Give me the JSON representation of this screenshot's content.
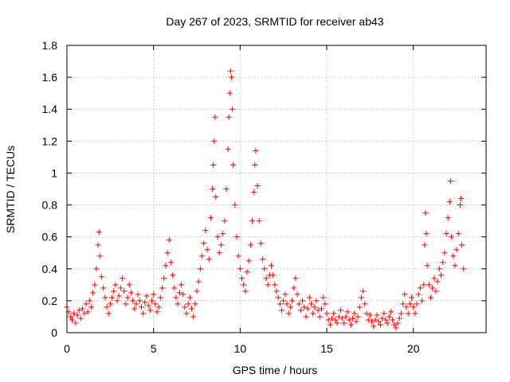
{
  "chart_data": {
    "type": "scatter",
    "title": "Day 267 of 2023, SRMTID for receiver ab43",
    "xlabel": "GPS time / hours",
    "ylabel": "SRMTID / TECUs",
    "xlim": [
      0,
      24.2
    ],
    "ylim": [
      0,
      1.8
    ],
    "xticks": [
      0,
      5,
      10,
      15,
      20
    ],
    "xtick_labels": [
      "0",
      "5",
      "10",
      "15",
      "20"
    ],
    "yticks": [
      0,
      0.2,
      0.4,
      0.6,
      0.8,
      1,
      1.2,
      1.4,
      1.6,
      1.8
    ],
    "ytick_labels": [
      "0",
      "0.2",
      "0.4",
      "0.6",
      "0.8",
      "1",
      "1.2",
      "1.4",
      "1.6",
      "1.8"
    ],
    "grid": true,
    "marker": "plus",
    "color": "#ff0000",
    "series": [
      {
        "name": "SRMTID",
        "points": [
          [
            0.0,
            0.16
          ],
          [
            0.1,
            0.13
          ],
          [
            0.2,
            0.1
          ],
          [
            0.3,
            0.08
          ],
          [
            0.4,
            0.12
          ],
          [
            0.5,
            0.06
          ],
          [
            0.6,
            0.11
          ],
          [
            0.7,
            0.14
          ],
          [
            0.8,
            0.09
          ],
          [
            0.9,
            0.15
          ],
          [
            1.0,
            0.12
          ],
          [
            1.1,
            0.18
          ],
          [
            1.2,
            0.13
          ],
          [
            1.3,
            0.2
          ],
          [
            1.4,
            0.16
          ],
          [
            1.5,
            0.25
          ],
          [
            1.6,
            0.3
          ],
          [
            1.7,
            0.4
          ],
          [
            1.8,
            0.55
          ],
          [
            1.85,
            0.63
          ],
          [
            1.9,
            0.48
          ],
          [
            2.0,
            0.35
          ],
          [
            2.1,
            0.28
          ],
          [
            2.2,
            0.22
          ],
          [
            2.3,
            0.16
          ],
          [
            2.4,
            0.12
          ],
          [
            2.5,
            0.18
          ],
          [
            2.6,
            0.22
          ],
          [
            2.7,
            0.26
          ],
          [
            2.8,
            0.3
          ],
          [
            2.9,
            0.2
          ],
          [
            3.0,
            0.23
          ],
          [
            3.1,
            0.28
          ],
          [
            3.2,
            0.34
          ],
          [
            3.3,
            0.26
          ],
          [
            3.4,
            0.18
          ],
          [
            3.5,
            0.22
          ],
          [
            3.6,
            0.3
          ],
          [
            3.7,
            0.25
          ],
          [
            3.8,
            0.2
          ],
          [
            3.9,
            0.15
          ],
          [
            4.0,
            0.18
          ],
          [
            4.1,
            0.24
          ],
          [
            4.2,
            0.2
          ],
          [
            4.3,
            0.16
          ],
          [
            4.4,
            0.12
          ],
          [
            4.5,
            0.19
          ],
          [
            4.6,
            0.23
          ],
          [
            4.7,
            0.17
          ],
          [
            4.8,
            0.14
          ],
          [
            4.9,
            0.2
          ],
          [
            5.0,
            0.24
          ],
          [
            5.1,
            0.18
          ],
          [
            5.2,
            0.13
          ],
          [
            5.3,
            0.16
          ],
          [
            5.4,
            0.22
          ],
          [
            5.5,
            0.28
          ],
          [
            5.6,
            0.34
          ],
          [
            5.7,
            0.42
          ],
          [
            5.8,
            0.5
          ],
          [
            5.9,
            0.58
          ],
          [
            6.0,
            0.44
          ],
          [
            6.1,
            0.36
          ],
          [
            6.2,
            0.28
          ],
          [
            6.3,
            0.22
          ],
          [
            6.4,
            0.18
          ],
          [
            6.5,
            0.25
          ],
          [
            6.6,
            0.3
          ],
          [
            6.7,
            0.24
          ],
          [
            6.8,
            0.16
          ],
          [
            6.9,
            0.12
          ],
          [
            7.0,
            0.18
          ],
          [
            7.1,
            0.22
          ],
          [
            7.2,
            0.15
          ],
          [
            7.3,
            0.1
          ],
          [
            7.4,
            0.18
          ],
          [
            7.5,
            0.26
          ],
          [
            7.6,
            0.32
          ],
          [
            7.7,
            0.4
          ],
          [
            7.8,
            0.48
          ],
          [
            7.9,
            0.56
          ],
          [
            8.0,
            0.64
          ],
          [
            8.1,
            0.52
          ],
          [
            8.2,
            0.46
          ],
          [
            8.3,
            0.72
          ],
          [
            8.4,
            0.9
          ],
          [
            8.45,
            1.05
          ],
          [
            8.5,
            1.2
          ],
          [
            8.55,
            1.35
          ],
          [
            8.6,
            0.85
          ],
          [
            8.7,
            0.6
          ],
          [
            8.8,
            0.5
          ],
          [
            8.9,
            0.55
          ],
          [
            9.0,
            0.62
          ],
          [
            9.1,
            0.7
          ],
          [
            9.2,
            0.9
          ],
          [
            9.3,
            1.15
          ],
          [
            9.35,
            1.35
          ],
          [
            9.4,
            1.5
          ],
          [
            9.45,
            1.64
          ],
          [
            9.5,
            1.6
          ],
          [
            9.55,
            1.4
          ],
          [
            9.6,
            1.05
          ],
          [
            9.7,
            0.8
          ],
          [
            9.8,
            0.6
          ],
          [
            9.9,
            0.48
          ],
          [
            10.0,
            0.4
          ],
          [
            10.1,
            0.34
          ],
          [
            10.2,
            0.3
          ],
          [
            10.3,
            0.26
          ],
          [
            10.4,
            0.38
          ],
          [
            10.5,
            0.45
          ],
          [
            10.6,
            0.55
          ],
          [
            10.7,
            0.7
          ],
          [
            10.8,
            0.88
          ],
          [
            10.85,
            1.05
          ],
          [
            10.9,
            1.14
          ],
          [
            11.0,
            0.92
          ],
          [
            11.1,
            0.7
          ],
          [
            11.2,
            0.56
          ],
          [
            11.3,
            0.46
          ],
          [
            11.4,
            0.4
          ],
          [
            11.5,
            0.34
          ],
          [
            11.6,
            0.3
          ],
          [
            11.7,
            0.36
          ],
          [
            11.8,
            0.42
          ],
          [
            11.9,
            0.36
          ],
          [
            12.0,
            0.3
          ],
          [
            12.1,
            0.26
          ],
          [
            12.2,
            0.22
          ],
          [
            12.3,
            0.18
          ],
          [
            12.4,
            0.14
          ],
          [
            12.5,
            0.2
          ],
          [
            12.6,
            0.24
          ],
          [
            12.7,
            0.18
          ],
          [
            12.8,
            0.12
          ],
          [
            12.9,
            0.16
          ],
          [
            13.0,
            0.2
          ],
          [
            13.1,
            0.28
          ],
          [
            13.2,
            0.34
          ],
          [
            13.3,
            0.24
          ],
          [
            13.4,
            0.18
          ],
          [
            13.5,
            0.14
          ],
          [
            13.6,
            0.2
          ],
          [
            13.7,
            0.16
          ],
          [
            13.8,
            0.1
          ],
          [
            13.9,
            0.15
          ],
          [
            14.0,
            0.22
          ],
          [
            14.1,
            0.18
          ],
          [
            14.2,
            0.12
          ],
          [
            14.3,
            0.16
          ],
          [
            14.4,
            0.2
          ],
          [
            14.5,
            0.14
          ],
          [
            14.6,
            0.1
          ],
          [
            14.7,
            0.15
          ],
          [
            14.8,
            0.22
          ],
          [
            14.9,
            0.18
          ],
          [
            15.0,
            0.12
          ],
          [
            15.1,
            0.08
          ],
          [
            15.2,
            0.05
          ],
          [
            15.3,
            0.09
          ],
          [
            15.4,
            0.12
          ],
          [
            15.5,
            0.08
          ],
          [
            15.6,
            0.06
          ],
          [
            15.7,
            0.1
          ],
          [
            15.8,
            0.14
          ],
          [
            15.9,
            0.09
          ],
          [
            16.0,
            0.06
          ],
          [
            16.1,
            0.1
          ],
          [
            16.2,
            0.13
          ],
          [
            16.3,
            0.08
          ],
          [
            16.4,
            0.05
          ],
          [
            16.5,
            0.09
          ],
          [
            16.6,
            0.12
          ],
          [
            16.7,
            0.07
          ],
          [
            16.8,
            0.1
          ],
          [
            16.9,
            0.16
          ],
          [
            17.0,
            0.22
          ],
          [
            17.1,
            0.26
          ],
          [
            17.2,
            0.18
          ],
          [
            17.3,
            0.12
          ],
          [
            17.4,
            0.08
          ],
          [
            17.5,
            0.11
          ],
          [
            17.6,
            0.07
          ],
          [
            17.7,
            0.04
          ],
          [
            17.8,
            0.08
          ],
          [
            17.9,
            0.11
          ],
          [
            18.0,
            0.07
          ],
          [
            18.1,
            0.05
          ],
          [
            18.2,
            0.09
          ],
          [
            18.3,
            0.12
          ],
          [
            18.4,
            0.08
          ],
          [
            18.5,
            0.06
          ],
          [
            18.6,
            0.1
          ],
          [
            18.7,
            0.13
          ],
          [
            18.8,
            0.08
          ],
          [
            18.9,
            0.05
          ],
          [
            19.0,
            0.03
          ],
          [
            19.1,
            0.06
          ],
          [
            19.2,
            0.09
          ],
          [
            19.3,
            0.12
          ],
          [
            19.4,
            0.18
          ],
          [
            19.5,
            0.24
          ],
          [
            19.6,
            0.16
          ],
          [
            19.7,
            0.12
          ],
          [
            19.8,
            0.18
          ],
          [
            19.9,
            0.22
          ],
          [
            20.0,
            0.16
          ],
          [
            20.1,
            0.12
          ],
          [
            20.2,
            0.18
          ],
          [
            20.3,
            0.24
          ],
          [
            20.4,
            0.28
          ],
          [
            20.5,
            0.2
          ],
          [
            20.6,
            0.3
          ],
          [
            20.65,
            0.55
          ],
          [
            20.7,
            0.75
          ],
          [
            20.75,
            0.62
          ],
          [
            20.8,
            0.42
          ],
          [
            20.9,
            0.3
          ],
          [
            21.0,
            0.22
          ],
          [
            21.1,
            0.28
          ],
          [
            21.2,
            0.34
          ],
          [
            21.3,
            0.26
          ],
          [
            21.4,
            0.32
          ],
          [
            21.5,
            0.4
          ],
          [
            21.6,
            0.36
          ],
          [
            21.7,
            0.44
          ],
          [
            21.8,
            0.5
          ],
          [
            21.9,
            0.62
          ],
          [
            22.0,
            0.72
          ],
          [
            22.1,
            0.82
          ],
          [
            22.15,
            0.95
          ],
          [
            22.2,
            0.6
          ],
          [
            22.3,
            0.48
          ],
          [
            22.4,
            0.42
          ],
          [
            22.5,
            0.52
          ],
          [
            22.6,
            0.62
          ],
          [
            22.7,
            0.8
          ],
          [
            22.75,
            0.84
          ],
          [
            22.8,
            0.55
          ],
          [
            22.9,
            0.4
          ]
        ]
      }
    ]
  }
}
